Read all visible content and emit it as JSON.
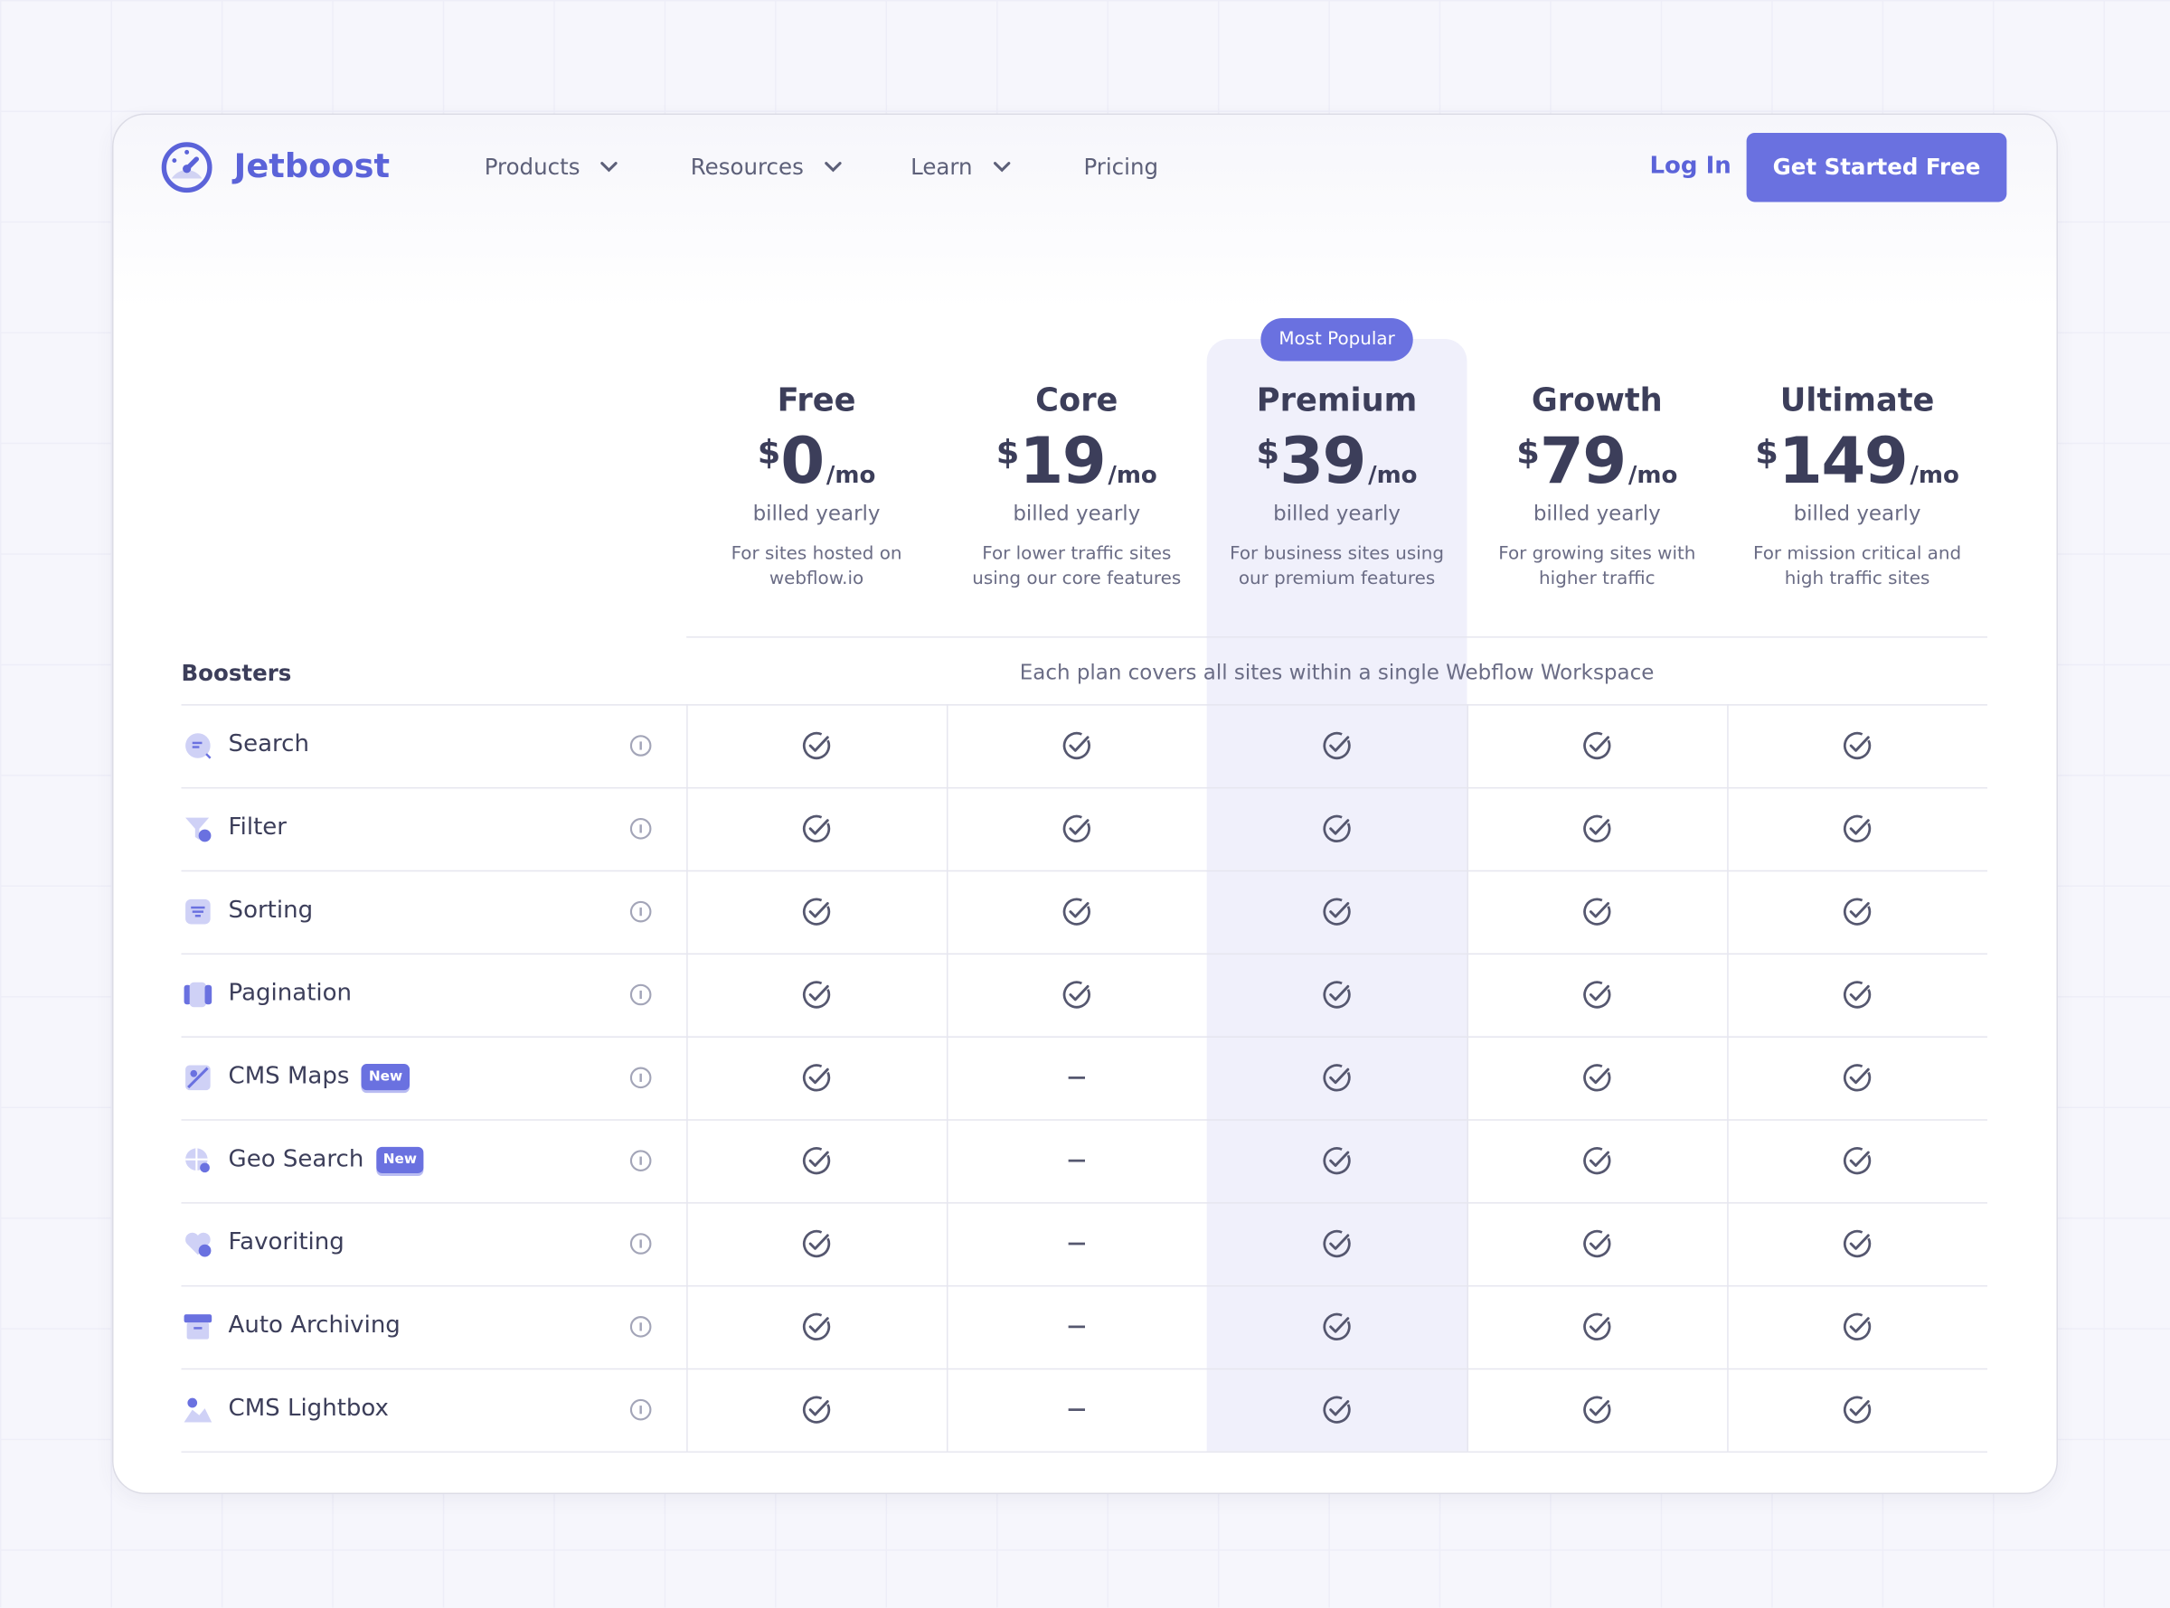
{
  "header": {
    "logo": "Jetboost",
    "nav": [
      "Products",
      "Resources",
      "Learn",
      "Pricing"
    ],
    "login": "Log In",
    "cta": "Get Started Free"
  },
  "badge": "Most Popular",
  "plans": [
    {
      "name": "Free",
      "currency": "$",
      "price": 0,
      "period": "/mo",
      "billing": "billed yearly",
      "description": [
        "For sites hosted on",
        "webflow.io"
      ]
    },
    {
      "name": "Core",
      "currency": "$",
      "price": 19,
      "period": "/mo",
      "billing": "billed yearly",
      "description": [
        "For lower traffic sites",
        "using our core features"
      ]
    },
    {
      "name": "Premium",
      "currency": "$",
      "price": 39,
      "period": "/mo",
      "billing": "billed yearly",
      "description": [
        "For business sites using",
        "our premium features"
      ],
      "highlight": true
    },
    {
      "name": "Growth",
      "currency": "$",
      "price": 79,
      "period": "/mo",
      "billing": "billed yearly",
      "description": [
        "For growing sites with",
        "higher traffic"
      ]
    },
    {
      "name": "Ultimate",
      "currency": "$",
      "price": 149,
      "period": "/mo",
      "billing": "billed yearly",
      "description": [
        "For mission critical and",
        "high traffic sites"
      ]
    }
  ],
  "table": {
    "title": "Boosters",
    "note": "Each plan covers all sites within a single Webflow Workspace",
    "rows": [
      {
        "label": "Search",
        "included": [
          true,
          true,
          true,
          true,
          true
        ]
      },
      {
        "label": "Filter",
        "included": [
          true,
          true,
          true,
          true,
          true
        ]
      },
      {
        "label": "Sorting",
        "included": [
          true,
          true,
          true,
          true,
          true
        ]
      },
      {
        "label": "Pagination",
        "included": [
          true,
          true,
          true,
          true,
          true
        ]
      },
      {
        "label": "CMS Maps",
        "badge": "New",
        "included": [
          true,
          false,
          true,
          true,
          true
        ]
      },
      {
        "label": "Geo Search",
        "badge": "New",
        "included": [
          true,
          false,
          true,
          true,
          true
        ]
      },
      {
        "label": "Favoriting",
        "included": [
          true,
          false,
          true,
          true,
          true
        ]
      },
      {
        "label": "Auto Archiving",
        "included": [
          true,
          false,
          true,
          true,
          true
        ]
      },
      {
        "label": "CMS Lightbox",
        "included": [
          true,
          false,
          true,
          true,
          true
        ]
      }
    ]
  }
}
